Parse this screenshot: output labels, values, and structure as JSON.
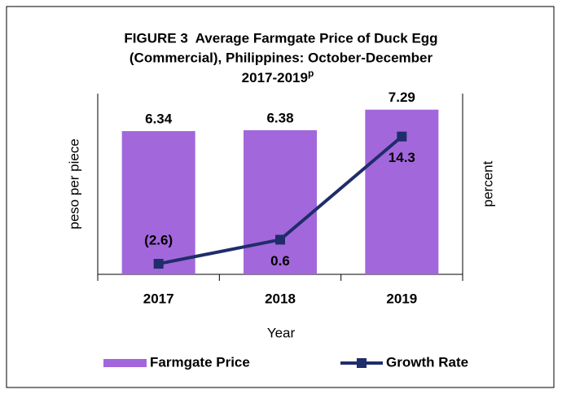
{
  "chart_data": {
    "type": "bar-line",
    "title_lines": [
      "FIGURE 3  Average Farmgate Price of Duck Egg",
      "(Commercial), Philippines: October-December",
      "2017-2019"
    ],
    "title_superscript": "p",
    "categories": [
      "2017",
      "2018",
      "2019"
    ],
    "x_label": "Year",
    "y_label": "peso per piece",
    "y2_label": "percent",
    "ylim": [
      0,
      8
    ],
    "y2lim": [
      -4,
      20
    ],
    "series": [
      {
        "name": "Farmgate Price",
        "type": "bar",
        "color": "#a367dc",
        "values": [
          6.34,
          6.38,
          7.29
        ]
      },
      {
        "name": "Growth Rate",
        "type": "line",
        "axis": "y2",
        "color": "#1f2d6b",
        "values": [
          -2.6,
          0.6,
          14.3
        ],
        "value_labels": [
          "(2.6)",
          "0.6",
          "14.3"
        ]
      }
    ]
  }
}
